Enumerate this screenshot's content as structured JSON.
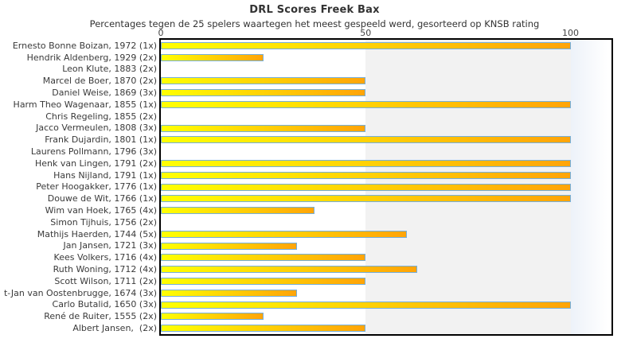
{
  "chart_data": {
    "type": "bar",
    "orientation": "horizontal",
    "title": "DRL Scores Freek Bax",
    "subtitle": "Percentages tegen de 25 spelers waartegen het meest gespeeld werd, gesorteerd op KNSB rating",
    "categories": [
      "Ernesto Bonne Boizan, 1972 (1x)",
      "Hendrik Aldenberg, 1929 (2x)",
      "Leon Klute, 1883 (2x)",
      "Marcel de Boer, 1870 (2x)",
      "Daniel Weise, 1869 (3x)",
      "Harm Theo Wagenaar, 1855 (1x)",
      "Chris Regeling, 1855 (2x)",
      "Jacco Vermeulen, 1808 (3x)",
      "Frank Dujardin, 1801 (1x)",
      "Laurens Pollmann, 1796 (3x)",
      "Henk van Lingen, 1791 (2x)",
      "Hans Nijland, 1791 (1x)",
      "Peter Hoogakker, 1776 (1x)",
      "Douwe de Wit, 1766 (1x)",
      "Wim van Hoek, 1765 (4x)",
      "Simon Tijhuis, 1756 (2x)",
      "Mathijs Haerden, 1744 (5x)",
      "Jan Jansen, 1721 (3x)",
      "Kees Volkers, 1716 (4x)",
      "Ruth Woning, 1712 (4x)",
      "Scott Wilson, 1711 (2x)",
      "t-Jan van Oostenbrugge, 1674 (3x)",
      "Carlo Butalid, 1650 (3x)",
      "René de Ruiter, 1555 (2x)",
      "Albert Jansen,  (2x)"
    ],
    "values": [
      100,
      25,
      0,
      50,
      50,
      100,
      0,
      50,
      100,
      0,
      100,
      100,
      100,
      100,
      37.5,
      0,
      60,
      33.3,
      50,
      62.5,
      50,
      33.3,
      100,
      25,
      50
    ],
    "x_ticks": [
      0,
      50,
      100
    ],
    "xlim": [
      0,
      110
    ],
    "shaded_band": [
      50,
      100
    ],
    "xlabel": "",
    "ylabel": "",
    "legend": "none",
    "grid": "off",
    "colors": {
      "bar_gradient_start": "#ffff02",
      "bar_gradient_end": "#ffa408",
      "bar_border": "#74afdd",
      "band_fill": "#f2f2f2",
      "plot_border": "#000000",
      "text": "#3a3a3a"
    }
  }
}
